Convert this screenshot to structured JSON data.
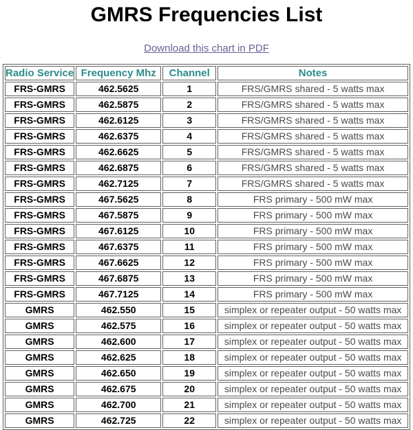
{
  "page": {
    "title": "GMRS Frequencies List",
    "download_link_label": "Download this chart in PDF"
  },
  "colors": {
    "title": "#000000",
    "link": "#6f5f96",
    "header_text": "#2e8b8b",
    "cell_text": "#000000",
    "notes_text": "#4a4a4a",
    "border": "#5f5f5f",
    "page_bg": "#ffffff"
  },
  "table": {
    "headers": [
      "Radio Service",
      "Frequency Mhz",
      "Channel",
      "Notes"
    ],
    "rows": [
      {
        "service": "FRS-GMRS",
        "frequency": "462.5625",
        "channel": "1",
        "notes": "FRS/GMRS shared - 5 watts max"
      },
      {
        "service": "FRS-GMRS",
        "frequency": "462.5875",
        "channel": "2",
        "notes": "FRS/GMRS shared - 5 watts max"
      },
      {
        "service": "FRS-GMRS",
        "frequency": "462.6125",
        "channel": "3",
        "notes": "FRS/GMRS shared - 5 watts max"
      },
      {
        "service": "FRS-GMRS",
        "frequency": "462.6375",
        "channel": "4",
        "notes": "FRS/GMRS shared - 5 watts max"
      },
      {
        "service": "FRS-GMRS",
        "frequency": "462.6625",
        "channel": "5",
        "notes": "FRS/GMRS shared - 5 watts max"
      },
      {
        "service": "FRS-GMRS",
        "frequency": "462.6875",
        "channel": "6",
        "notes": "FRS/GMRS shared - 5 watts max"
      },
      {
        "service": "FRS-GMRS",
        "frequency": "462.7125",
        "channel": "7",
        "notes": "FRS/GMRS shared - 5 watts max"
      },
      {
        "service": "FRS-GMRS",
        "frequency": "467.5625",
        "channel": "8",
        "notes": "FRS primary - 500 mW max"
      },
      {
        "service": "FRS-GMRS",
        "frequency": "467.5875",
        "channel": "9",
        "notes": "FRS primary - 500 mW max"
      },
      {
        "service": "FRS-GMRS",
        "frequency": "467.6125",
        "channel": "10",
        "notes": "FRS primary - 500 mW max"
      },
      {
        "service": "FRS-GMRS",
        "frequency": "467.6375",
        "channel": "11",
        "notes": "FRS primary - 500 mW max"
      },
      {
        "service": "FRS-GMRS",
        "frequency": "467.6625",
        "channel": "12",
        "notes": "FRS primary - 500 mW max"
      },
      {
        "service": "FRS-GMRS",
        "frequency": "467.6875",
        "channel": "13",
        "notes": "FRS primary - 500 mW max"
      },
      {
        "service": "FRS-GMRS",
        "frequency": "467.7125",
        "channel": "14",
        "notes": "FRS primary - 500 mW max"
      },
      {
        "service": "GMRS",
        "frequency": "462.550",
        "channel": "15",
        "notes": "simplex or repeater output - 50 watts max"
      },
      {
        "service": "GMRS",
        "frequency": "462.575",
        "channel": "16",
        "notes": "simplex or repeater output - 50 watts max"
      },
      {
        "service": "GMRS",
        "frequency": "462.600",
        "channel": "17",
        "notes": "simplex or repeater output - 50 watts max"
      },
      {
        "service": "GMRS",
        "frequency": "462.625",
        "channel": "18",
        "notes": "simplex or repeater output - 50 watts max"
      },
      {
        "service": "GMRS",
        "frequency": "462.650",
        "channel": "19",
        "notes": "simplex or repeater output - 50 watts max"
      },
      {
        "service": "GMRS",
        "frequency": "462.675",
        "channel": "20",
        "notes": "simplex or repeater output - 50 watts max"
      },
      {
        "service": "GMRS",
        "frequency": "462.700",
        "channel": "21",
        "notes": "simplex or repeater output - 50 watts max"
      },
      {
        "service": "GMRS",
        "frequency": "462.725",
        "channel": "22",
        "notes": "simplex or repeater output - 50 watts max"
      }
    ]
  }
}
